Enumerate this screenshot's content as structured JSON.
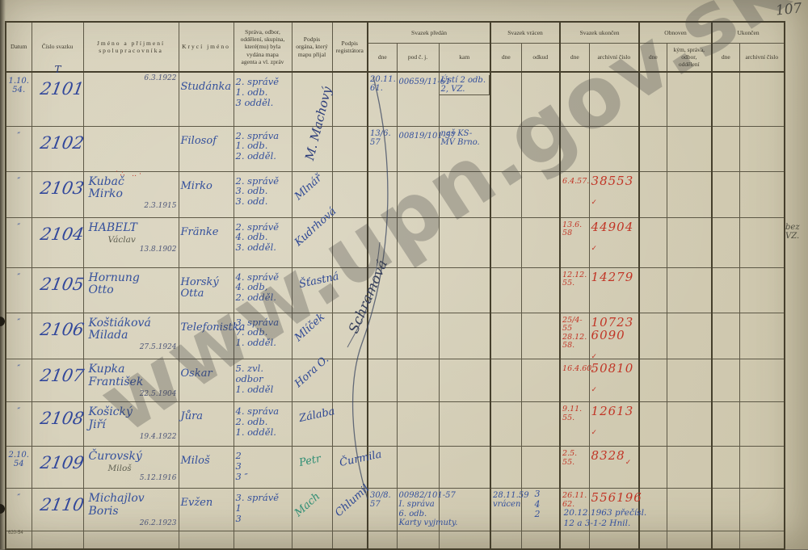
{
  "page": {
    "number": "107",
    "watermark": "www.upn.gov.sk",
    "margin_note": "bez\nVZ.",
    "form_code": "620-54"
  },
  "header": {
    "datum": "Datum",
    "cislo": "Číslo svazku",
    "jmeno": "Jméno a příjmení\nspolupracovníka",
    "kryci": "Krycí jméno",
    "sprava": "Správa, odbor,\noddělení, skupina,\nkteré(mu) byla\nvydána mapa\nagenta a vl. zpráv",
    "podpis_organa": "Podpis\norgána, který\nmapu přijal",
    "podpis_registratora": "Podpis\nregistrátora",
    "groups": {
      "predan": "Svazek předán",
      "vracen": "Svazek vrácen",
      "ukoncen": "Svazek ukončen",
      "obnoven": "Obnoven",
      "ukoncen2": "Ukončen"
    },
    "sub": {
      "dne": "dne",
      "pod_cj": "pod č. j.",
      "kam": "kam",
      "odkud": "odkud",
      "arch": "archivní číslo",
      "kym": "kým, správa,\nodbor,\noddělení"
    }
  },
  "overlays": {
    "officer_signature": "M. Machový",
    "registrar_signature": "Schramová"
  },
  "rows": [
    {
      "datum": "1.10.\n54.",
      "cislo": "2101",
      "cislo_mark": "T",
      "jmeno": "",
      "birth": "6.3.1922",
      "kryci": "Studánka",
      "sprava": "2. správě\n1. odb.\n3 odděl.",
      "p_dne": "20.11.\n61.",
      "p_cj": "00659/11-61",
      "p_kam": "Ústí 2 odb.\n2, VZ.",
      "cls": {
        "p_kam": "boxed"
      }
    },
    {
      "datum": "″",
      "cislo": "2102",
      "kryci": "Filosof",
      "sprava": "2. správa\n1. odb.\n2. odděl.",
      "p_dne": "13/6.\n57",
      "p_cj": "00819/101-57",
      "p_kam": "naš KS-\nMV Brno."
    },
    {
      "datum": "″",
      "cislo": "2103",
      "jmeno": "Kubač\nMirko",
      "birth": "2.3.1915",
      "scribble": "′∴ ‥·",
      "kryci": "Mirko",
      "sprava": "2. správě\n3. odb.\n3. odd.",
      "podpis": "Mlnář",
      "u_dne": "6.4.57.",
      "u_arch": "38553",
      "u_check": "✓"
    },
    {
      "datum": "″",
      "cislo": "2104",
      "jmeno": "HABELT",
      "jmeno_note": "Václav",
      "birth": "13.8.1902",
      "kryci": "Fränke",
      "sprava": "2. správě\n4. odb.\n3. odděl.",
      "podpis": "Kudrhová",
      "u_dne": "13.6.\n58",
      "u_arch": "44904",
      "u_check": "✓"
    },
    {
      "datum": "″",
      "cislo": "2105",
      "jmeno": "Hornung\nOtto",
      "kryci": "Horský\nOtta",
      "sprava": "4. správě\n4. odb,\n2. odděl.",
      "podpis": "Šťastná",
      "cls": {
        "podpis": "flat"
      },
      "u_dne": "12.12.\n55.",
      "u_arch": "14279"
    },
    {
      "datum": "″",
      "cislo": "2106",
      "jmeno": "Koštiáková\nMilada",
      "birth": "27.5.1924",
      "kryci": "Telefonistka",
      "sprava": "3. správa\n7. odb.\n1. odděl.",
      "podpis": "Mlíček",
      "u_dne": "25/4-55\n28.12.\n58.",
      "u_arch": "10723\n6090",
      "u_check": "✓"
    },
    {
      "datum": "″",
      "cislo": "2107",
      "jmeno": "Kupka\nFrantišek",
      "birth": "22.5.1904",
      "kryci": "Oskar",
      "sprava": "5. zvl. odbor\n1. odděl",
      "podpis": "Hora O.",
      "u_dne": "16.4.60.",
      "u_arch": "50810",
      "u_check": "✓"
    },
    {
      "datum": "″",
      "cislo": "2108",
      "jmeno": "Košický\nJiří",
      "birth": "19.4.1922",
      "kryci": "Jůra",
      "sprava": "4. správa\n2. odb.\n1. odděl.",
      "podpis": "Zálaba",
      "cls": {
        "podpis": "flat"
      },
      "u_dne": "9.11.\n55.",
      "u_arch": "12613",
      "u_check": "✓"
    },
    {
      "datum": "2.10.\n54",
      "cislo": "2109",
      "jmeno": "Čurovský",
      "jmeno_note": "Miloš",
      "birth": "5.12.1916",
      "kryci": "Miloš",
      "sprava": "2\n3\n3  ″",
      "podpis": "Petr",
      "reg": "Čurmila",
      "cls": {
        "podpis": "flat green",
        "reg": "flat"
      },
      "u_dne": "2.5.\n55.",
      "u_arch": "8328",
      "u_check": "✓"
    },
    {
      "datum": "″",
      "cislo": "2110",
      "jmeno": "Michajlov\nBoris",
      "birth": "26.2.1923",
      "kryci": "Evžen",
      "sprava": "3. správě\n1\n3",
      "podpis": "Mach",
      "reg": "Chlumil",
      "cls": {
        "podpis": "green"
      },
      "p_dne": "30/8.\n57",
      "p_cj": "00982/101-57\nI. správa\n6. odb.\nKarty vyjmuty.",
      "v_dne": "28.11.59\nvrácen",
      "v_odkud": "3\n4\n2",
      "u_dne": "26.11.\n62.",
      "u_arch": "556196",
      "u_note": "20.12.1963 přečísl.\n12 a 3-1-2 Hnil."
    },
    {}
  ]
}
